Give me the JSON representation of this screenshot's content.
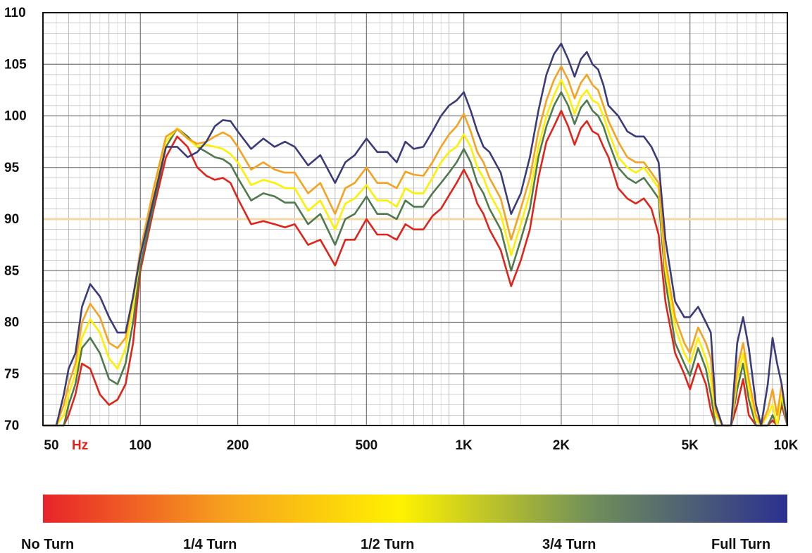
{
  "chart_data": {
    "type": "line",
    "x_scale": "log",
    "xlim": [
      50,
      10000
    ],
    "ylim": [
      70,
      110
    ],
    "grid": true,
    "reference_line": 90,
    "x_ticks": [
      {
        "value": 50,
        "label": "50"
      },
      {
        "value": 100,
        "label": "100"
      },
      {
        "value": 200,
        "label": "200"
      },
      {
        "value": 500,
        "label": "500"
      },
      {
        "value": 1000,
        "label": "1K"
      },
      {
        "value": 2000,
        "label": "2K"
      },
      {
        "value": 5000,
        "label": "5K"
      },
      {
        "value": 10000,
        "label": "10K"
      }
    ],
    "x_unit": "Hz",
    "y_ticks": [
      70,
      75,
      80,
      85,
      90,
      95,
      100,
      105,
      110
    ],
    "x": [
      50,
      55,
      58,
      60,
      63,
      66,
      70,
      75,
      80,
      85,
      90,
      95,
      100,
      110,
      120,
      130,
      140,
      150,
      160,
      170,
      180,
      190,
      200,
      220,
      240,
      260,
      280,
      300,
      330,
      360,
      400,
      430,
      460,
      500,
      540,
      580,
      620,
      660,
      700,
      750,
      800,
      850,
      900,
      950,
      1000,
      1050,
      1100,
      1150,
      1200,
      1300,
      1400,
      1500,
      1600,
      1700,
      1800,
      1900,
      2000,
      2100,
      2200,
      2300,
      2400,
      2500,
      2600,
      2700,
      2800,
      3000,
      3200,
      3400,
      3600,
      3800,
      4000,
      4200,
      4500,
      4800,
      5000,
      5300,
      5600,
      5800,
      6000,
      6300,
      6700,
      7000,
      7300,
      7600,
      8000,
      8300,
      8700,
      9000,
      9300,
      9600,
      10000
    ],
    "series": [
      {
        "color": "#e2231a",
        "values": [
          70,
          70,
          70,
          71,
          73,
          76,
          75.5,
          73,
          72,
          72.5,
          74,
          78,
          85,
          91,
          96,
          98,
          97,
          95,
          94.2,
          93.8,
          94,
          93.5,
          92,
          89.5,
          89.8,
          89.5,
          89.2,
          89.5,
          87.5,
          88,
          85.5,
          88,
          88,
          90,
          88.5,
          88.5,
          88,
          89.5,
          89,
          89,
          90.3,
          91,
          92.3,
          93.5,
          94.8,
          93.5,
          91.5,
          90.5,
          89,
          87,
          83.5,
          86,
          89,
          94,
          97.5,
          99,
          100.5,
          99,
          97.2,
          98.8,
          99.5,
          98.5,
          98.2,
          97,
          96,
          93,
          92,
          91.5,
          92,
          91,
          88.5,
          82,
          77,
          75,
          73.5,
          76,
          74,
          71.5,
          70,
          70,
          70,
          72,
          74.5,
          71,
          70,
          70,
          70,
          70.5,
          70,
          72,
          70
        ]
      },
      {
        "color": "#4e7a4e",
        "values": [
          70,
          70,
          70,
          72,
          74,
          77.5,
          78.5,
          77,
          74.5,
          74,
          76,
          80,
          85.5,
          91.5,
          97,
          98.8,
          98,
          97,
          96.5,
          96,
          95.8,
          95.3,
          94,
          91.8,
          92.5,
          92.2,
          91.6,
          91.6,
          89.5,
          90.5,
          87.5,
          90,
          90.5,
          92.2,
          90.5,
          90.5,
          90,
          91.8,
          91.2,
          91.2,
          92.5,
          93.5,
          94.5,
          95.5,
          96.8,
          95.5,
          93.5,
          92.5,
          91,
          89,
          85,
          88,
          91,
          96,
          99,
          101,
          102.3,
          101,
          99.2,
          100.8,
          101.5,
          100.5,
          100,
          99,
          97.5,
          95,
          94,
          93.5,
          94,
          93,
          92,
          84,
          78,
          76,
          74.8,
          77.5,
          75.5,
          73,
          70,
          70,
          70,
          73.5,
          76,
          72.5,
          70,
          70,
          70,
          71,
          70,
          72.5,
          70
        ]
      },
      {
        "color": "#fff000",
        "values": [
          70,
          70,
          71,
          73,
          75,
          78.5,
          80.3,
          79,
          76.5,
          75.5,
          77.5,
          81.5,
          86.5,
          92.5,
          97.5,
          98.8,
          97.8,
          97,
          97.2,
          97,
          96.8,
          96.3,
          95.5,
          93.3,
          93.8,
          93.5,
          93,
          93,
          90.8,
          91.8,
          89,
          91.5,
          92,
          93.3,
          91.8,
          91.8,
          91.2,
          93,
          92.5,
          92.5,
          94,
          95.5,
          96.5,
          97,
          98.2,
          97,
          95,
          94,
          92.5,
          90.5,
          86.5,
          89.5,
          92.5,
          97,
          100,
          102,
          103.5,
          102,
          100.2,
          101.8,
          102.5,
          101.5,
          101.2,
          100,
          98.5,
          96,
          95,
          94.5,
          95,
          94,
          93,
          85,
          79.5,
          77,
          76,
          78.5,
          76.5,
          74.5,
          71,
          70,
          70,
          74.5,
          77,
          73.5,
          70.5,
          70,
          71,
          72,
          70,
          73,
          70
        ]
      },
      {
        "color": "#f7a21e",
        "values": [
          70,
          70,
          72,
          74,
          76,
          80,
          81.8,
          80.5,
          78,
          77.5,
          78.5,
          82.5,
          87,
          93,
          98,
          98.7,
          97.8,
          97.3,
          97.5,
          98,
          98.4,
          98,
          97,
          94.8,
          95.5,
          94.8,
          94.5,
          94.5,
          92.5,
          93.5,
          90.5,
          93,
          93.5,
          95,
          93.5,
          93.5,
          93,
          94.6,
          94.3,
          94.2,
          95.5,
          97,
          98.2,
          99,
          100.2,
          98.5,
          96.5,
          95.5,
          94,
          92,
          88,
          91,
          94,
          98.5,
          101.5,
          103.5,
          104.8,
          103.5,
          101.7,
          103.2,
          104,
          103,
          102.5,
          101,
          99.5,
          97.5,
          96,
          95.5,
          95.5,
          94.5,
          93.5,
          86,
          80.5,
          78,
          77,
          79.5,
          78,
          76.5,
          71.5,
          70,
          70,
          75.5,
          78,
          74.5,
          71,
          70,
          71.5,
          73.5,
          71,
          74,
          70
        ]
      },
      {
        "color": "#3b3b7a",
        "values": [
          70,
          70,
          73,
          75.5,
          77,
          81.5,
          83.7,
          82.5,
          80.5,
          79,
          79,
          82.5,
          86.5,
          92,
          97,
          97,
          96,
          96.5,
          97.5,
          99,
          99.6,
          99.5,
          98.5,
          96.8,
          97.8,
          97,
          97.5,
          97,
          95.2,
          96.2,
          93.5,
          95.5,
          96.2,
          97.8,
          96.5,
          96.5,
          95.5,
          97.5,
          96.8,
          97,
          98.5,
          100,
          101,
          101.5,
          102.3,
          100.5,
          98.5,
          97,
          96.5,
          94.5,
          90.5,
          92.5,
          96,
          100.5,
          104,
          106,
          107,
          105.5,
          103.8,
          105.5,
          106.2,
          105,
          104.5,
          103,
          101,
          100,
          98.5,
          98,
          98,
          97,
          95.5,
          88,
          82,
          80.5,
          80.5,
          81.5,
          80,
          79,
          72,
          70,
          70,
          78,
          80.5,
          77.5,
          72,
          70,
          74,
          78.5,
          76,
          74,
          70
        ]
      }
    ],
    "legend": {
      "placement": "bottom",
      "style": "gradient",
      "colors": [
        "#e8232a",
        "#f7a21e",
        "#fff200",
        "#6f8e5a",
        "#2b3090"
      ],
      "labels": [
        "No Turn",
        "1/4 Turn",
        "1/2 Turn",
        "3/4 Turn",
        "Full Turn"
      ]
    }
  }
}
